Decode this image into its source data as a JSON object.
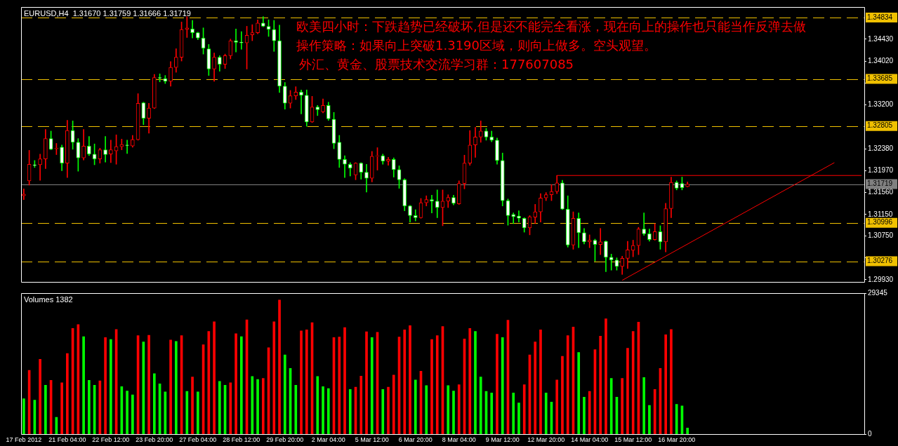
{
  "chart_data": [
    {
      "type": "candlestick",
      "title": "EURUSD,H4  1.31670 1.31759 1.31666 1.31719",
      "annotations": [
        "欧美四小时：下跌趋势已经破坏,但是还不能完全看涨，现在向上的操作也只能当作反弹去做",
        "操作策略：如果向上突破1.3190区域，则向上做多。空头观望。",
        "外汇、黄金、股票技术交流学习群：177607085"
      ],
      "categories": [
        null,
        null,
        null,
        null,
        null,
        null,
        null,
        null,
        null,
        null,
        null,
        null,
        null,
        null,
        null,
        null,
        null,
        null,
        null,
        null,
        null,
        null,
        null,
        null,
        null,
        null,
        null,
        null,
        null,
        null,
        null,
        null,
        null,
        null,
        null,
        null,
        null,
        null,
        null,
        null,
        null,
        null,
        null,
        null,
        null,
        null,
        null,
        null,
        null,
        null,
        null,
        null,
        null,
        null,
        null,
        null,
        null,
        null,
        null,
        null,
        null,
        null,
        null,
        null,
        null,
        null,
        null,
        null,
        null,
        null,
        null,
        null,
        null,
        null,
        null,
        null,
        null,
        null,
        null,
        null,
        null,
        null,
        null,
        null,
        null,
        null,
        null,
        null,
        null,
        null,
        null,
        null,
        null,
        null,
        null,
        null,
        null,
        null,
        null,
        null,
        null,
        null,
        null,
        null,
        null,
        null,
        null,
        null,
        null,
        null,
        null,
        null,
        null,
        null,
        null,
        null,
        null,
        null,
        null,
        null,
        null,
        null,
        null,
        null,
        null,
        null,
        null,
        null,
        null,
        null,
        null,
        null,
        null,
        null,
        null,
        null,
        null,
        null,
        null,
        null,
        null,
        null,
        null,
        null,
        null,
        null,
        null,
        null,
        null,
        null,
        null,
        null,
        null,
        null,
        null
      ],
      "ohlc": [
        [
          1.315,
          1.3163,
          1.3143,
          1.3153
        ],
        [
          1.3178,
          1.3235,
          1.317,
          1.3209
        ],
        [
          1.3208,
          1.3216,
          1.3203,
          1.3207
        ],
        [
          1.3208,
          1.3228,
          1.3179,
          1.3219
        ],
        [
          1.3219,
          1.3274,
          1.3201,
          1.3257
        ],
        [
          1.3257,
          1.3271,
          1.3236,
          1.3237
        ],
        [
          1.3238,
          1.3248,
          1.3227,
          1.3239
        ],
        [
          1.3241,
          1.3245,
          1.3197,
          1.3211
        ],
        [
          1.3211,
          1.3291,
          1.3184,
          1.3272
        ],
        [
          1.3272,
          1.329,
          1.3237,
          1.325
        ],
        [
          1.325,
          1.3257,
          1.3196,
          1.3221
        ],
        [
          1.3221,
          1.3274,
          1.3217,
          1.3243
        ],
        [
          1.3243,
          1.3261,
          1.3225,
          1.3228
        ],
        [
          1.3228,
          1.3247,
          1.3208,
          1.3219
        ],
        [
          1.3219,
          1.3239,
          1.3211,
          1.3236
        ],
        [
          1.3236,
          1.3261,
          1.3213,
          1.3227
        ],
        [
          1.3228,
          1.3254,
          1.3212,
          1.3236
        ],
        [
          1.3234,
          1.3264,
          1.3209,
          1.3242
        ],
        [
          1.3242,
          1.3256,
          1.3236,
          1.3246
        ],
        [
          1.3245,
          1.3254,
          1.3229,
          1.3244
        ],
        [
          1.3243,
          1.3263,
          1.3241,
          1.3255
        ],
        [
          1.3255,
          1.3341,
          1.3254,
          1.3323
        ],
        [
          1.3324,
          1.3325,
          1.3283,
          1.3295
        ],
        [
          1.3295,
          1.3323,
          1.3267,
          1.3314
        ],
        [
          1.3314,
          1.3377,
          1.3313,
          1.3371
        ],
        [
          1.3371,
          1.3378,
          1.3363,
          1.337
        ],
        [
          1.3369,
          1.3375,
          1.336,
          1.3364
        ],
        [
          1.3364,
          1.3401,
          1.3355,
          1.339
        ],
        [
          1.339,
          1.3425,
          1.3381,
          1.3409
        ],
        [
          1.3409,
          1.3475,
          1.3402,
          1.3461
        ],
        [
          1.3461,
          1.3485,
          1.3446,
          1.3464
        ],
        [
          1.3462,
          1.3478,
          1.3445,
          1.3455
        ],
        [
          1.3455,
          1.3456,
          1.3442,
          1.3445
        ],
        [
          1.3445,
          1.3464,
          1.3415,
          1.3426
        ],
        [
          1.3425,
          1.3433,
          1.3375,
          1.3387
        ],
        [
          1.3387,
          1.3417,
          1.3364,
          1.3409
        ],
        [
          1.3409,
          1.3412,
          1.3383,
          1.3396
        ],
        [
          1.3396,
          1.3415,
          1.3388,
          1.3412
        ],
        [
          1.3412,
          1.3443,
          1.3406,
          1.344
        ],
        [
          1.344,
          1.3462,
          1.3419,
          1.3437
        ],
        [
          1.3437,
          1.3457,
          1.3424,
          1.3436
        ],
        [
          1.3436,
          1.3467,
          1.3387,
          1.345
        ],
        [
          1.3451,
          1.347,
          1.344,
          1.3455
        ],
        [
          1.3455,
          1.3479,
          1.3453,
          1.3473
        ],
        [
          1.3473,
          1.3485,
          1.3466,
          1.3467
        ],
        [
          1.3467,
          1.3479,
          1.3448,
          1.3461
        ],
        [
          1.3461,
          1.3478,
          1.342,
          1.344
        ],
        [
          1.344,
          1.3469,
          1.3343,
          1.3355
        ],
        [
          1.3355,
          1.3362,
          1.3312,
          1.3323
        ],
        [
          1.3323,
          1.3347,
          1.3314,
          1.3337
        ],
        [
          1.3337,
          1.3354,
          1.333,
          1.3344
        ],
        [
          1.3344,
          1.3348,
          1.3303,
          1.3338
        ],
        [
          1.3338,
          1.3348,
          1.328,
          1.3288
        ],
        [
          1.3288,
          1.3336,
          1.3287,
          1.3316
        ],
        [
          1.3316,
          1.3319,
          1.33,
          1.3311
        ],
        [
          1.3307,
          1.3331,
          1.3305,
          1.3319
        ],
        [
          1.3319,
          1.3325,
          1.3291,
          1.3294
        ],
        [
          1.3293,
          1.3306,
          1.3238,
          1.3248
        ],
        [
          1.325,
          1.3263,
          1.3203,
          1.3218
        ],
        [
          1.3218,
          1.3225,
          1.3184,
          1.3209
        ],
        [
          1.3209,
          1.3212,
          1.3187,
          1.3202
        ],
        [
          1.3189,
          1.3212,
          1.318,
          1.3211
        ],
        [
          1.3211,
          1.3212,
          1.3181,
          1.3194
        ],
        [
          1.3194,
          1.3209,
          1.3157,
          1.3183
        ],
        [
          1.3183,
          1.3233,
          1.3176,
          1.3224
        ],
        [
          1.3224,
          1.324,
          1.3198,
          1.3225
        ],
        [
          1.3225,
          1.3228,
          1.3209,
          1.3215
        ],
        [
          1.3215,
          1.3222,
          1.3207,
          1.3218
        ],
        [
          1.3218,
          1.3221,
          1.3185,
          1.3199
        ],
        [
          1.3199,
          1.3206,
          1.3164,
          1.318
        ],
        [
          1.318,
          1.3182,
          1.3122,
          1.3131
        ],
        [
          1.3131,
          1.3132,
          1.3101,
          1.3113
        ],
        [
          1.3113,
          1.3124,
          1.3103,
          1.3109
        ],
        [
          1.3109,
          1.3145,
          1.3108,
          1.3137
        ],
        [
          1.3137,
          1.315,
          1.3131,
          1.3143
        ],
        [
          1.3143,
          1.3151,
          1.3118,
          1.314
        ],
        [
          1.314,
          1.3161,
          1.3109,
          1.3128
        ],
        [
          1.3128,
          1.3161,
          1.3094,
          1.314
        ],
        [
          1.314,
          1.3152,
          1.3128,
          1.3147
        ],
        [
          1.3147,
          1.3151,
          1.3133,
          1.3136
        ],
        [
          1.3135,
          1.3178,
          1.3134,
          1.3173
        ],
        [
          1.3173,
          1.3226,
          1.3163,
          1.3211
        ],
        [
          1.3211,
          1.3272,
          1.3207,
          1.3245
        ],
        [
          1.3245,
          1.3278,
          1.3222,
          1.326
        ],
        [
          1.326,
          1.329,
          1.325,
          1.3271
        ],
        [
          1.3271,
          1.3276,
          1.3254,
          1.326
        ],
        [
          1.326,
          1.3271,
          1.3251,
          1.3254
        ],
        [
          1.3254,
          1.3258,
          1.3209,
          1.3216
        ],
        [
          1.3216,
          1.323,
          1.3131,
          1.3141
        ],
        [
          1.3141,
          1.3144,
          1.3095,
          1.3113
        ],
        [
          1.3115,
          1.3118,
          1.3098,
          1.3111
        ],
        [
          1.3112,
          1.3122,
          1.3101,
          1.3108
        ],
        [
          1.3108,
          1.3109,
          1.3082,
          1.309
        ],
        [
          1.309,
          1.3113,
          1.3077,
          1.3111
        ],
        [
          1.311,
          1.3134,
          1.3098,
          1.312
        ],
        [
          1.312,
          1.3154,
          1.3101,
          1.3146
        ],
        [
          1.3146,
          1.3156,
          1.3141,
          1.3152
        ],
        [
          1.3152,
          1.3171,
          1.3141,
          1.3158
        ],
        [
          1.3158,
          1.3188,
          1.3154,
          1.3174
        ],
        [
          1.3174,
          1.3179,
          1.3124,
          1.3125
        ],
        [
          1.3125,
          1.315,
          1.3054,
          1.3058
        ],
        [
          1.3058,
          1.312,
          1.305,
          1.3108
        ],
        [
          1.3108,
          1.3118,
          1.3053,
          1.3081
        ],
        [
          1.3081,
          1.3089,
          1.306,
          1.3064
        ],
        [
          1.3064,
          1.3077,
          1.3053,
          1.3067
        ],
        [
          1.3067,
          1.3069,
          1.3028,
          1.3059
        ],
        [
          1.3059,
          1.3089,
          1.304,
          1.3064
        ],
        [
          1.3065,
          1.3066,
          1.3008,
          1.3035
        ],
        [
          1.3035,
          1.3041,
          1.3011,
          1.303
        ],
        [
          1.303,
          1.3034,
          1.3011,
          1.3018
        ],
        [
          1.3018,
          1.3037,
          1.3003,
          1.3033
        ],
        [
          1.3033,
          1.3065,
          1.3014,
          1.3049
        ],
        [
          1.3048,
          1.3067,
          1.3036,
          1.3057
        ],
        [
          1.3057,
          1.3091,
          1.304,
          1.3088
        ],
        [
          1.3088,
          1.3118,
          1.3076,
          1.3079
        ],
        [
          1.3079,
          1.3088,
          1.3065,
          1.3068
        ],
        [
          1.3068,
          1.3098,
          1.3067,
          1.3083
        ],
        [
          1.3083,
          1.3094,
          1.305,
          1.3064
        ],
        [
          1.3064,
          1.3136,
          1.3045,
          1.3126
        ],
        [
          1.3126,
          1.3185,
          1.3109,
          1.3175
        ],
        [
          1.3175,
          1.3178,
          1.3161,
          1.3164
        ],
        [
          1.3173,
          1.3185,
          1.3161,
          1.3165
        ],
        [
          1.3167,
          1.31759,
          1.31666,
          1.31719
        ],
        null,
        null,
        null,
        null,
        null,
        null,
        null,
        null,
        null,
        null,
        null,
        null,
        null,
        null,
        null,
        null,
        null,
        null,
        null,
        null,
        null,
        null,
        null,
        null,
        null,
        null,
        null,
        null,
        null,
        null,
        null,
        null
      ],
      "series": [
        {
          "type": "line",
          "color": "#ff0000",
          "values": [
            null,
            null,
            null,
            null,
            null,
            null,
            null,
            null,
            null,
            null,
            null,
            null,
            null,
            null,
            null,
            null,
            null,
            null,
            null,
            null,
            null,
            null,
            null,
            null,
            null,
            null,
            null,
            null,
            null,
            null,
            null,
            null,
            null,
            null,
            null,
            null,
            null,
            null,
            null,
            null,
            null,
            null,
            null,
            null,
            null,
            null,
            null,
            null,
            null,
            null,
            null,
            null,
            null,
            null,
            null,
            null,
            null,
            null,
            null,
            null,
            null,
            null,
            null,
            null,
            null,
            null,
            null,
            null,
            null,
            null,
            null,
            null,
            null,
            null,
            null,
            null,
            null,
            null,
            null,
            null,
            null,
            null,
            null,
            null,
            null,
            null,
            null,
            null,
            null,
            null,
            null,
            null,
            null,
            null,
            null,
            null,
            null,
            null,
            1.3188,
            null,
            null,
            null,
            null,
            null,
            null,
            null,
            null,
            null,
            null,
            null,
            null,
            null,
            null,
            null,
            null,
            null,
            null,
            null,
            null,
            null,
            null,
            null,
            null,
            null,
            null,
            null,
            null,
            null,
            null,
            null,
            null,
            null,
            null,
            null,
            null,
            null,
            null,
            null,
            null,
            null,
            null,
            null,
            null,
            null,
            null,
            null,
            null,
            null,
            null,
            null,
            null,
            null,
            null,
            null,
            1.3188
          ]
        },
        {
          "type": "line",
          "color": "#ff0000",
          "values": [
            null,
            null,
            null,
            null,
            null,
            null,
            null,
            null,
            null,
            null,
            null,
            null,
            null,
            null,
            null,
            null,
            null,
            null,
            null,
            null,
            null,
            null,
            null,
            null,
            null,
            null,
            null,
            null,
            null,
            null,
            null,
            null,
            null,
            null,
            null,
            null,
            null,
            null,
            null,
            null,
            null,
            null,
            null,
            null,
            null,
            null,
            null,
            null,
            null,
            null,
            null,
            null,
            null,
            null,
            null,
            null,
            null,
            null,
            null,
            null,
            null,
            null,
            null,
            null,
            null,
            null,
            null,
            null,
            null,
            null,
            null,
            null,
            null,
            null,
            null,
            null,
            null,
            null,
            null,
            null,
            null,
            null,
            null,
            null,
            null,
            null,
            null,
            null,
            null,
            null,
            null,
            null,
            null,
            null,
            null,
            null,
            null,
            null,
            null,
            null,
            null,
            null,
            null,
            null,
            null,
            null,
            null,
            null,
            null,
            null,
            1.2992,
            null,
            null,
            null,
            null,
            null,
            null,
            null,
            null,
            null,
            null,
            null,
            null,
            null,
            null,
            null,
            null,
            null,
            null,
            null,
            null,
            null,
            null,
            null,
            null,
            null,
            null,
            null,
            null,
            null,
            null,
            null,
            null,
            null,
            null,
            null,
            null,
            null,
            null,
            1.3212,
            null,
            null,
            null,
            null,
            null
          ]
        }
      ],
      "ylim": [
        1.2989,
        1.3503
      ],
      "yticks": [
        {
          "value": 1.3443,
          "label": "1.34430"
        },
        {
          "value": 1.3402,
          "label": "1.34020"
        },
        {
          "value": 1.3361,
          "label": null
        },
        {
          "value": 1.332,
          "label": "1.33200"
        },
        {
          "value": 1.3238,
          "label": "1.32380"
        },
        {
          "value": 1.3197,
          "label": "1.31970"
        },
        {
          "value": 1.3156,
          "label": "1.31560"
        },
        {
          "value": 1.3115,
          "label": "1.31150"
        },
        {
          "value": 1.3075,
          "label": "1.30750"
        },
        {
          "value": 1.3034,
          "label": null
        },
        {
          "value": 1.2993,
          "label": "1.29930"
        }
      ],
      "ref_lines": [
        {
          "axis": "y",
          "value": 1.34834,
          "label": "1.34834",
          "color": "#f0c000",
          "line_style": "dashed"
        },
        {
          "axis": "y",
          "value": 1.33685,
          "label": "1.33685",
          "color": "#f0c000",
          "line_style": "dashed"
        },
        {
          "axis": "y",
          "value": 1.32805,
          "label": "1.32805",
          "color": "#f0c000",
          "line_style": "dashed"
        },
        {
          "axis": "y",
          "value": 1.30996,
          "label": "1.30996",
          "color": "#f0c000",
          "line_style": "dashed"
        },
        {
          "axis": "y",
          "value": 1.30276,
          "label": "1.30276",
          "color": "#f0c000",
          "line_style": "dashed"
        },
        {
          "axis": "y",
          "value": 1.31719,
          "label": "1.31719",
          "color": "#808080",
          "line_style": "solid"
        }
      ],
      "tick_labels": "y"
    },
    {
      "type": "bar",
      "title": "Volumes 1382",
      "categories": [
        "17 Feb 2012",
        null,
        null,
        null,
        null,
        null,
        null,
        null,
        "21 Feb 04:00",
        null,
        null,
        null,
        null,
        null,
        null,
        null,
        "22 Feb 12:00",
        null,
        null,
        null,
        null,
        null,
        null,
        null,
        "23 Feb 20:00",
        null,
        null,
        null,
        null,
        null,
        null,
        null,
        "27 Feb 04:00",
        null,
        null,
        null,
        null,
        null,
        null,
        null,
        "28 Feb 12:00",
        null,
        null,
        null,
        null,
        null,
        null,
        null,
        "29 Feb 20:00",
        null,
        null,
        null,
        null,
        null,
        null,
        null,
        "2 Mar 04:00",
        null,
        null,
        null,
        null,
        null,
        null,
        null,
        "5 Mar 12:00",
        null,
        null,
        null,
        null,
        null,
        null,
        null,
        "6 Mar 20:00",
        null,
        null,
        null,
        null,
        null,
        null,
        null,
        "8 Mar 04:00",
        null,
        null,
        null,
        null,
        null,
        null,
        null,
        "9 Mar 12:00",
        null,
        null,
        null,
        null,
        null,
        null,
        null,
        "12 Mar 20:00",
        null,
        null,
        null,
        null,
        null,
        null,
        null,
        "14 Mar 04:00",
        null,
        null,
        null,
        null,
        null,
        null,
        null,
        "15 Mar 12:00",
        null,
        null,
        null,
        null,
        null,
        null,
        null,
        "16 Mar 20:00",
        null,
        null,
        null,
        null,
        null,
        null,
        null,
        null,
        null,
        null,
        null,
        null,
        null,
        null,
        null,
        null,
        null,
        null,
        null,
        null,
        null,
        null,
        null,
        null,
        null,
        null,
        null,
        null,
        null,
        null,
        null,
        null,
        null,
        null
      ],
      "values": [
        7400,
        13300,
        7100,
        15600,
        10200,
        11200,
        3500,
        10700,
        16800,
        22000,
        22800,
        20300,
        11200,
        10200,
        11100,
        20100,
        19700,
        21800,
        9900,
        9000,
        8200,
        20500,
        19200,
        20600,
        12600,
        10500,
        8800,
        19600,
        19300,
        20500,
        8900,
        11900,
        8800,
        18600,
        21400,
        23400,
        11000,
        10200,
        10700,
        20900,
        20300,
        23800,
        12000,
        11400,
        11600,
        18000,
        23400,
        27900,
        16500,
        13700,
        10200,
        21500,
        21700,
        23200,
        12000,
        9900,
        9500,
        20100,
        20200,
        22200,
        9300,
        9800,
        12100,
        21300,
        20100,
        21200,
        9300,
        9800,
        12300,
        20200,
        21700,
        22600,
        11300,
        13100,
        10100,
        19700,
        20500,
        22400,
        10100,
        9000,
        10300,
        19800,
        22000,
        21400,
        11900,
        8900,
        8600,
        20800,
        20100,
        23700,
        8600,
        6500,
        10300,
        16500,
        19200,
        21700,
        8600,
        6700,
        11300,
        16200,
        20500,
        22300,
        17000,
        7700,
        8900,
        17600,
        20400,
        24000,
        11600,
        7700,
        11600,
        17900,
        21400,
        23300,
        11800,
        6000,
        9300,
        13700,
        20700,
        21800,
        6200,
        5900,
        1300,
        null,
        null,
        null,
        null,
        null,
        null,
        null,
        null,
        null,
        null,
        null,
        null,
        null,
        null,
        null,
        null,
        null,
        null,
        null,
        null,
        null,
        null,
        null,
        null,
        null,
        null,
        null,
        null,
        null,
        null,
        null,
        null
      ],
      "colors": [
        "#00ff00",
        "#ff0000",
        "#00ff00",
        "#ff0000",
        "#00ff00",
        "#ff0000",
        "#00ff00",
        "#ff0000",
        "#ff0000",
        "#ff0000",
        "#ff0000",
        "#00ff00",
        "#00ff00",
        "#00ff00",
        "#ff0000",
        "#ff0000",
        "#00ff00",
        "#ff0000",
        "#00ff00",
        "#00ff00",
        "#00ff00",
        "#ff0000",
        "#00ff00",
        "#ff0000",
        "#00ff00",
        "#00ff00",
        "#00ff00",
        "#ff0000",
        "#00ff00",
        "#ff0000",
        "#00ff00",
        "#ff0000",
        "#00ff00",
        "#ff0000",
        "#ff0000",
        "#ff0000",
        "#00ff00",
        "#00ff00",
        "#ff0000",
        "#ff0000",
        "#00ff00",
        "#ff0000",
        "#00ff00",
        "#00ff00",
        "#ff0000",
        "#ff0000",
        "#ff0000",
        "#ff0000",
        "#00ff00",
        "#00ff00",
        "#00ff00",
        "#ff0000",
        "#ff0000",
        "#ff0000",
        "#00ff00",
        "#00ff00",
        "#00ff00",
        "#ff0000",
        "#ff0000",
        "#ff0000",
        "#00ff00",
        "#ff0000",
        "#ff0000",
        "#ff0000",
        "#00ff00",
        "#ff0000",
        "#00ff00",
        "#ff0000",
        "#ff0000",
        "#ff0000",
        "#ff0000",
        "#ff0000",
        "#00ff00",
        "#ff0000",
        "#00ff00",
        "#ff0000",
        "#ff0000",
        "#ff0000",
        "#00ff00",
        "#00ff00",
        "#ff0000",
        "#ff0000",
        "#ff0000",
        "#00ff00",
        "#00ff00",
        "#00ff00",
        "#00ff00",
        "#ff0000",
        "#00ff00",
        "#ff0000",
        "#00ff00",
        "#00ff00",
        "#ff0000",
        "#ff0000",
        "#ff0000",
        "#ff0000",
        "#00ff00",
        "#00ff00",
        "#ff0000",
        "#ff0000",
        "#ff0000",
        "#ff0000",
        "#00ff00",
        "#00ff00",
        "#ff0000",
        "#ff0000",
        "#ff0000",
        "#ff0000",
        "#00ff00",
        "#00ff00",
        "#ff0000",
        "#ff0000",
        "#ff0000",
        "#ff0000",
        "#00ff00",
        "#00ff00",
        "#ff0000",
        "#ff0000",
        "#ff0000",
        "#ff0000",
        "#00ff00",
        "#00ff00",
        "#00ff00",
        null,
        null,
        null,
        null,
        null,
        null,
        null,
        null,
        null,
        null,
        null,
        null,
        null,
        null,
        null,
        null,
        null,
        null,
        null,
        null,
        null,
        null,
        null,
        null,
        null,
        null,
        null,
        null,
        null,
        null,
        null,
        null
      ],
      "ylim": [
        0,
        29345
      ],
      "yticks": [
        0,
        29345
      ]
    }
  ]
}
